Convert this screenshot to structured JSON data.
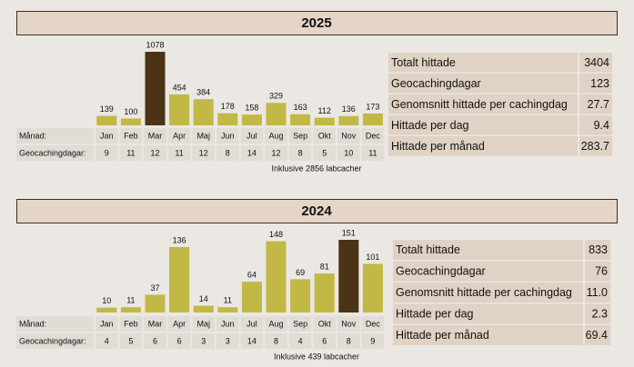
{
  "chart_data": [
    {
      "type": "bar",
      "title": "2025",
      "categories": [
        "Jan",
        "Feb",
        "Mar",
        "Apr",
        "Maj",
        "Jun",
        "Jul",
        "Aug",
        "Sep",
        "Okt",
        "Nov",
        "Dec"
      ],
      "values": [
        139,
        100,
        1078,
        454,
        384,
        178,
        158,
        329,
        163,
        112,
        136,
        173
      ],
      "bar_colors": [
        "#c2b846",
        "#c2b846",
        "#4b3315",
        "#c2b846",
        "#c2b846",
        "#c2b846",
        "#c2b846",
        "#c2b846",
        "#c2b846",
        "#c2b846",
        "#c2b846",
        "#c2b846"
      ],
      "row_labels": [
        "Månad:",
        "Geocachingdagar:"
      ],
      "days": [
        9,
        11,
        12,
        11,
        12,
        8,
        14,
        12,
        8,
        5,
        10,
        11
      ],
      "note": "Inklusive 2856 labcacher",
      "stats": [
        [
          "Totalt hittade",
          "3404"
        ],
        [
          "Geocachingdagar",
          "123"
        ],
        [
          "Genomsnitt hittade per cachingdag",
          "27.7"
        ],
        [
          "Hittade per dag",
          "9.4"
        ],
        [
          "Hittade per månad",
          "283.7"
        ]
      ]
    },
    {
      "type": "bar",
      "title": "2024",
      "categories": [
        "Jan",
        "Feb",
        "Mar",
        "Apr",
        "Maj",
        "Jun",
        "Jul",
        "Aug",
        "Sep",
        "Okt",
        "Nov",
        "Dec"
      ],
      "values": [
        10,
        11,
        37,
        136,
        14,
        11,
        64,
        148,
        69,
        81,
        151,
        101
      ],
      "bar_colors": [
        "#c2b846",
        "#c2b846",
        "#c2b846",
        "#c2b846",
        "#c2b846",
        "#c2b846",
        "#c2b846",
        "#c2b846",
        "#c2b846",
        "#c2b846",
        "#4b3315",
        "#c2b846"
      ],
      "row_labels": [
        "Månad:",
        "Geocachingdagar:"
      ],
      "days": [
        4,
        5,
        6,
        6,
        3,
        3,
        14,
        8,
        4,
        6,
        8,
        9
      ],
      "note": "Inklusive 439 labcacher",
      "stats": [
        [
          "Totalt hittade",
          "833"
        ],
        [
          "Geocachingdagar",
          "76"
        ],
        [
          "Genomsnitt hittade per cachingdag",
          "11.0"
        ],
        [
          "Hittade per dag",
          "2.3"
        ],
        [
          "Hittade per månad",
          "69.4"
        ]
      ]
    }
  ]
}
